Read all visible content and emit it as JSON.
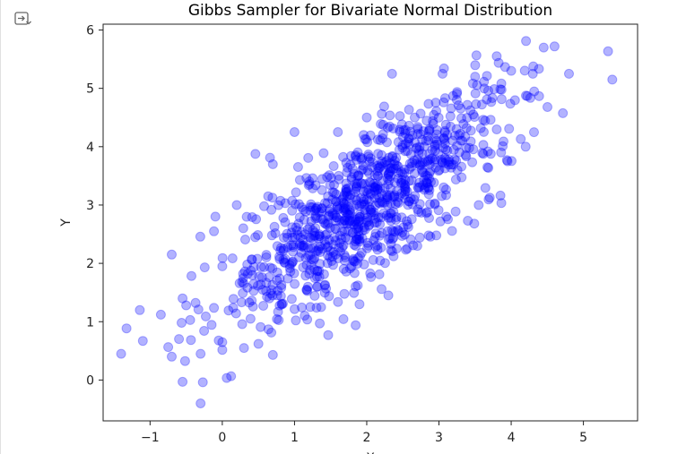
{
  "colors": {
    "point": "#0000ff",
    "axis": "#222222",
    "background": "#ffffff"
  },
  "icons": {
    "output_toggle": "output-collapse-icon"
  },
  "chart_data": {
    "type": "scatter",
    "title": "Gibbs Sampler for Bivariate Normal Distribution",
    "xlabel": "X",
    "ylabel": "Y",
    "xlim": [
      -1.65,
      5.75
    ],
    "ylim": [
      -0.7,
      6.1
    ],
    "xticks": [
      -1,
      0,
      1,
      2,
      3,
      4,
      5
    ],
    "xtick_labels": [
      "−1",
      "0",
      "1",
      "2",
      "3",
      "4",
      "5"
    ],
    "yticks": [
      0,
      1,
      2,
      3,
      4,
      5,
      6
    ],
    "ytick_labels": [
      "0",
      "1",
      "2",
      "3",
      "4",
      "5",
      "6"
    ],
    "grid": false,
    "legend": false,
    "marker": "circle",
    "point_alpha": 0.3,
    "n_points": 1000,
    "distribution": {
      "mean_x": 2.0,
      "mean_y": 3.0,
      "sd_x": 1.0,
      "sd_y": 1.0,
      "rho": 0.8
    },
    "highlighted_points": [
      {
        "x": -1.4,
        "y": 0.45
      },
      {
        "x": -1.1,
        "y": 0.67
      },
      {
        "x": -0.85,
        "y": 1.12
      },
      {
        "x": -0.7,
        "y": 2.15
      },
      {
        "x": -0.7,
        "y": 0.4
      },
      {
        "x": -0.55,
        "y": -0.03
      },
      {
        "x": -0.55,
        "y": 1.4
      },
      {
        "x": -0.5,
        "y": 1.28
      },
      {
        "x": -0.3,
        "y": 0.45
      },
      {
        "x": -0.3,
        "y": -0.4
      },
      {
        "x": 0.0,
        "y": 0.65
      },
      {
        "x": 0.3,
        "y": 0.55
      },
      {
        "x": 0.5,
        "y": 0.62
      },
      {
        "x": 0.7,
        "y": 0.43
      },
      {
        "x": 0.7,
        "y": 3.7
      },
      {
        "x": 1.35,
        "y": 0.97
      },
      {
        "x": 1.0,
        "y": 4.25
      },
      {
        "x": 1.6,
        "y": 4.25
      },
      {
        "x": 2.0,
        "y": 4.5
      },
      {
        "x": 2.35,
        "y": 5.25
      },
      {
        "x": 3.05,
        "y": 5.25
      },
      {
        "x": 3.5,
        "y": 5.2
      },
      {
        "x": 3.8,
        "y": 5.55
      },
      {
        "x": 4.0,
        "y": 5.3
      },
      {
        "x": 4.3,
        "y": 5.25
      },
      {
        "x": 4.45,
        "y": 5.7
      },
      {
        "x": 4.6,
        "y": 5.72
      },
      {
        "x": 4.8,
        "y": 5.25
      },
      {
        "x": 5.4,
        "y": 5.15
      },
      {
        "x": 4.2,
        "y": 4.0
      },
      {
        "x": 3.95,
        "y": 3.75
      },
      {
        "x": 3.55,
        "y": 3.0
      },
      {
        "x": 3.4,
        "y": 2.73
      },
      {
        "x": 2.7,
        "y": 2.3
      },
      {
        "x": 2.3,
        "y": 1.45
      },
      {
        "x": 1.9,
        "y": 1.3
      },
      {
        "x": 0.0,
        "y": 1.95
      },
      {
        "x": 0.2,
        "y": 3.0
      }
    ]
  }
}
